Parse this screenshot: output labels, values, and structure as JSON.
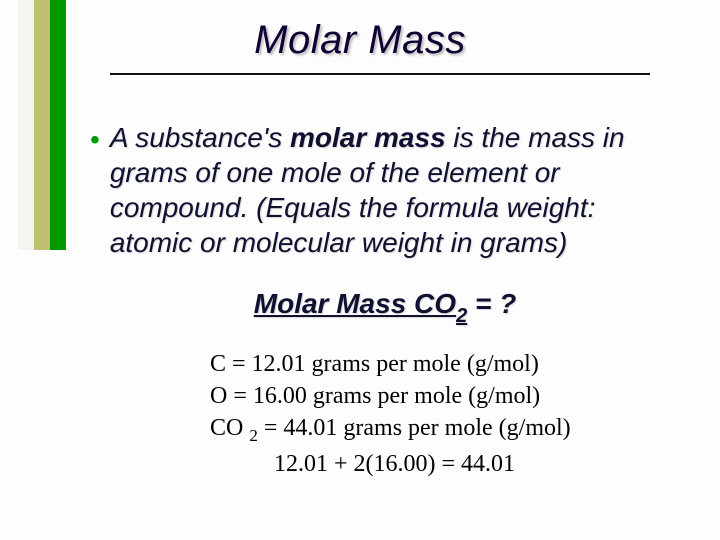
{
  "accent_colors": {
    "bar1": "#f5f5f0",
    "bar2": "#c0c070",
    "bar3": "#009900"
  },
  "title": "Molar Mass",
  "bullet": {
    "prefix": "A substance's ",
    "bold": "molar mass",
    "rest": " is the mass in grams of one mole of the element or compound. (Equals the formula weight: atomic or molecular weight in grams)"
  },
  "formula": {
    "label": "Molar Mass CO",
    "subscript": "2",
    "tail": "  =  ?"
  },
  "calc": {
    "line1_a": "C = 12.01 grams per mole (g/mol)",
    "line2_a": "O = 16.00 grams per mole (g/mol)",
    "line3_pre": "CO ",
    "line3_sub": "2",
    "line3_post": " = 44.01 grams per mole (g/mol)",
    "line4": "12.01 + 2(16.00) = 44.01"
  }
}
